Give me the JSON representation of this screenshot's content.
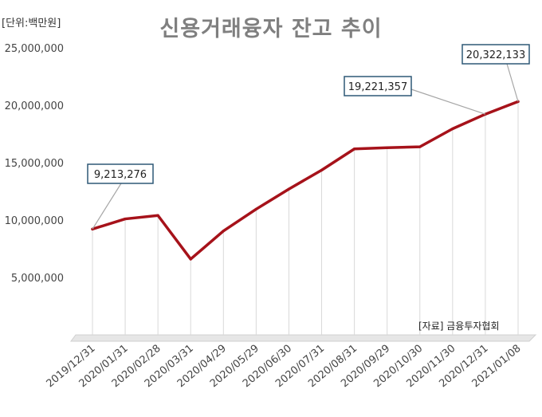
{
  "unit_label": "[단위:백만원]",
  "source_label": "[자료] 금융투자협회",
  "chart_data": {
    "type": "line",
    "title": "신용거래융자 잔고 추이",
    "xlabel": "",
    "ylabel": "",
    "categories": [
      "2019/12/31",
      "2020/01/31",
      "2020/02/28",
      "2020/03/31",
      "2020/04/29",
      "2020/05/29",
      "2020/06/30",
      "2020/07/31",
      "2020/08/31",
      "2020/09/29",
      "2020/10/30",
      "2020/11/30",
      "2020/12/31",
      "2021/01/08"
    ],
    "series": [
      {
        "values": [
          9213276,
          10100000,
          10400000,
          6600000,
          9050000,
          10950000,
          12700000,
          14350000,
          16200000,
          16300000,
          16380000,
          17950000,
          19221357,
          20322133
        ]
      }
    ],
    "ylim": [
      0,
      25000000
    ],
    "yticks": [
      5000000,
      10000000,
      15000000,
      20000000,
      25000000
    ],
    "ytick_labels": [
      "5,000,000",
      "10,000,000",
      "15,000,000",
      "20,000,000",
      "25,000,000"
    ],
    "line_color": "#a6121a",
    "grid": "vertical",
    "annotations": [
      {
        "index": 0,
        "label": "9,213,276"
      },
      {
        "index": 12,
        "label": "19,221,357"
      },
      {
        "index": 13,
        "label": "20,322,133"
      }
    ]
  }
}
